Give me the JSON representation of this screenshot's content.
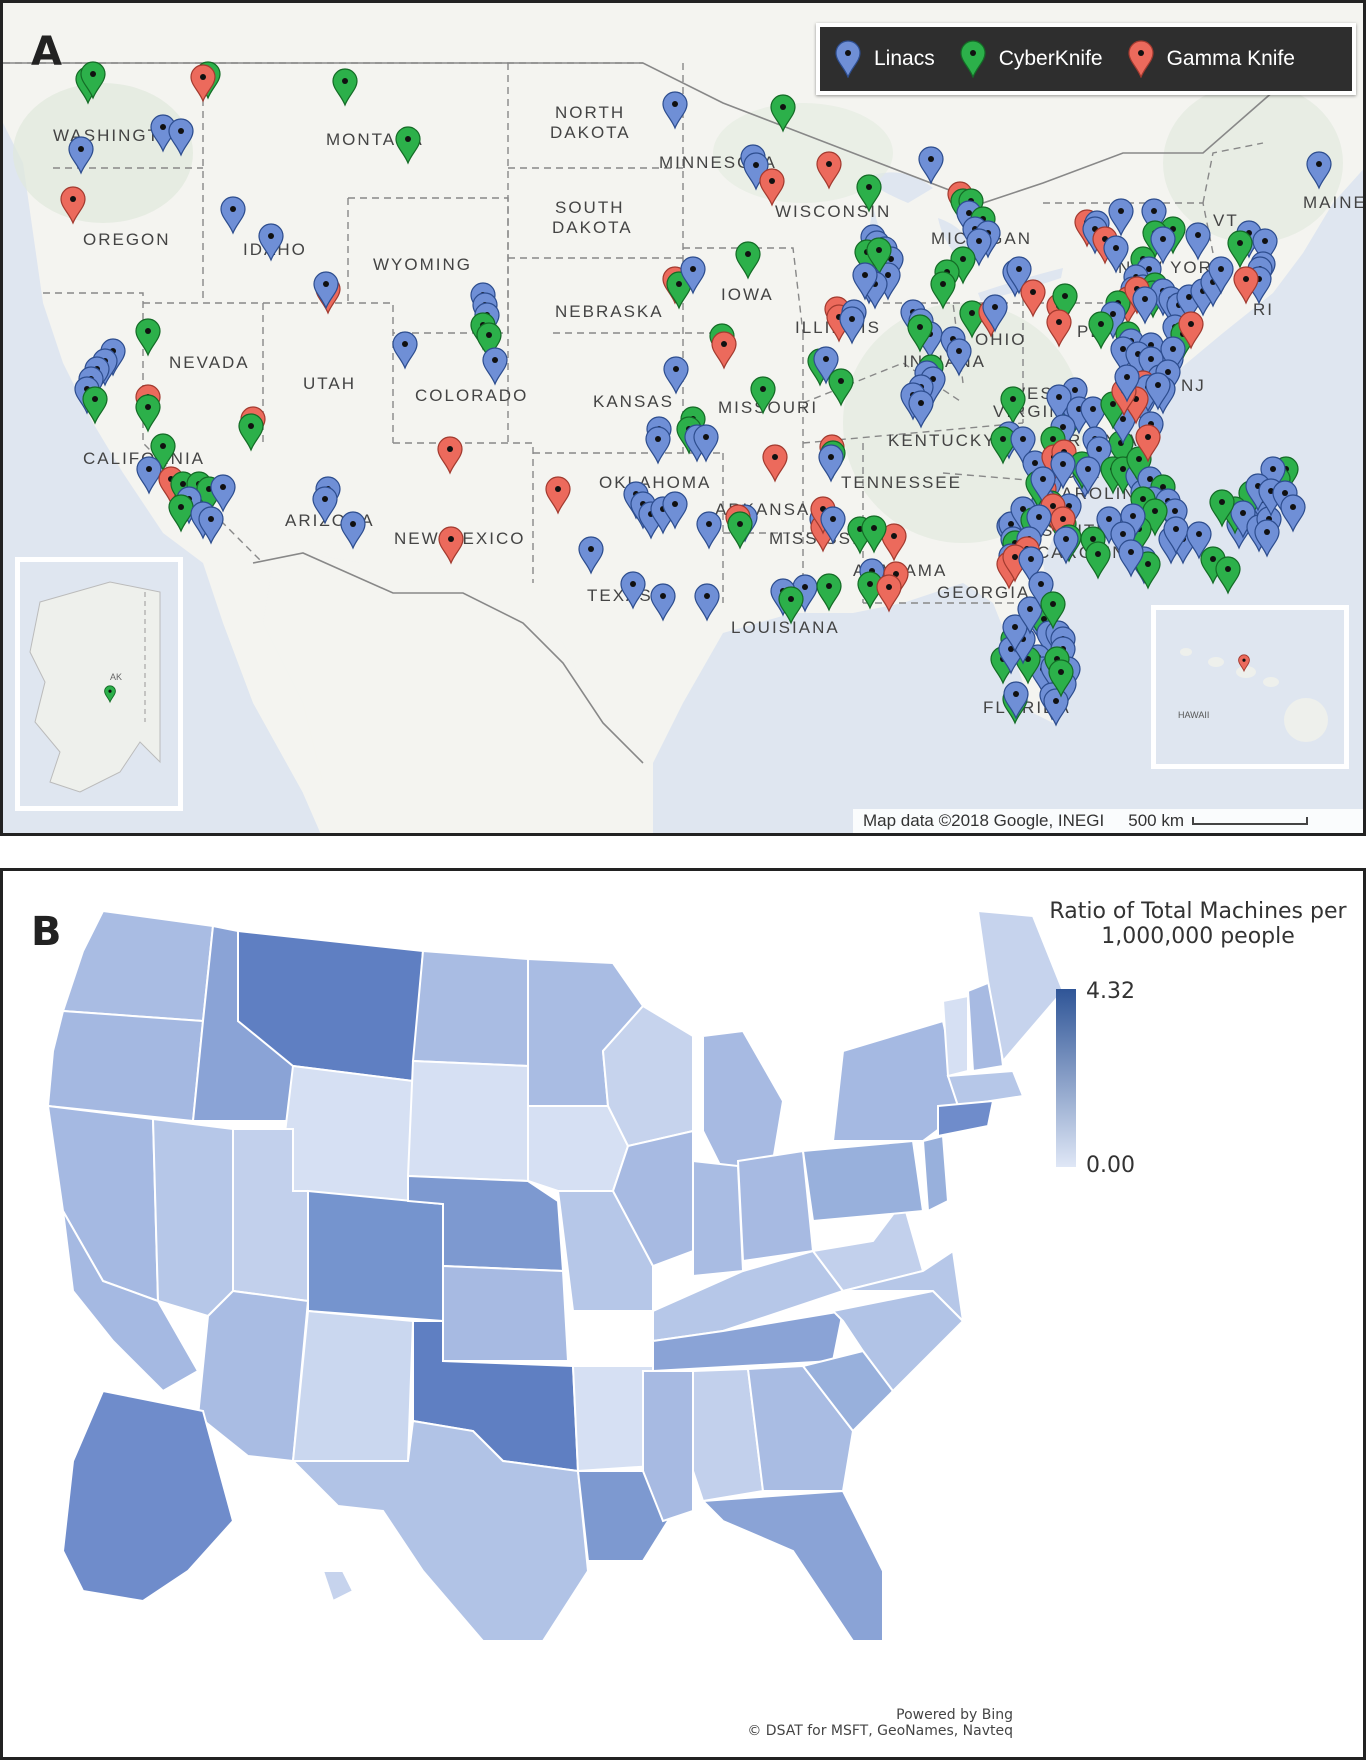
{
  "panel_a": {
    "letter": "A",
    "legend": [
      {
        "label": "Linacs",
        "color": "#6f8fd6"
      },
      {
        "label": "CyberKnife",
        "color": "#2cb04a"
      },
      {
        "label": "Gamma Knife",
        "color": "#ec6a5c"
      }
    ],
    "attribution": "Map data ©2018 Google, INEGI",
    "scale_label": "500 km",
    "inset_alaska_label": "AK",
    "inset_hawaii_label": "HAWAII",
    "state_labels": [
      {
        "text": "WASHINGTON"
      },
      {
        "text": "MONTANA"
      },
      {
        "text": "NORTH"
      },
      {
        "text": "DAKOTA"
      },
      {
        "text": "MINNESOTA"
      },
      {
        "text": "MAINE"
      },
      {
        "text": "OREGON"
      },
      {
        "text": "IDAHO"
      },
      {
        "text": "SOUTH"
      },
      {
        "text": "DAKOTA"
      },
      {
        "text": "WISCONSIN"
      },
      {
        "text": "VT"
      },
      {
        "text": "WYOMING"
      },
      {
        "text": "MICHIGAN"
      },
      {
        "text": "NEW YORK"
      },
      {
        "text": "NEBRASKA"
      },
      {
        "text": "IOWA"
      },
      {
        "text": "ILLINOIS"
      },
      {
        "text": "NEVADA"
      },
      {
        "text": "UTAH"
      },
      {
        "text": "COLORADO"
      },
      {
        "text": "KANSAS"
      },
      {
        "text": "MISSOURI"
      },
      {
        "text": "INDIANA"
      },
      {
        "text": "OHIO"
      },
      {
        "text": "PENN"
      },
      {
        "text": "NJ"
      },
      {
        "text": "DE"
      },
      {
        "text": "WEST"
      },
      {
        "text": "VIRGINIA"
      },
      {
        "text": "CALIFORNIA"
      },
      {
        "text": "KENTUCKY"
      },
      {
        "text": "VIRGINIA"
      },
      {
        "text": "OKLAHOMA"
      },
      {
        "text": "TENNESSEE"
      },
      {
        "text": "NORTH"
      },
      {
        "text": "CAROLINA"
      },
      {
        "text": "ARKANSAS"
      },
      {
        "text": "ARIZONA"
      },
      {
        "text": "NEW MEXICO"
      },
      {
        "text": "MISSISSIPPI"
      },
      {
        "text": "SOUTH"
      },
      {
        "text": "CAROLINA"
      },
      {
        "text": "ALABAMA"
      },
      {
        "text": "TEXAS"
      },
      {
        "text": "GEORGIA"
      },
      {
        "text": "LOUISIANA"
      },
      {
        "text": "FLORIDA"
      },
      {
        "text": "RI"
      }
    ]
  },
  "panel_b": {
    "letter": "B",
    "legend_title_line1": "Ratio of Total Machines per",
    "legend_title_line2": "1,000,000 people",
    "legend_max": "4.32",
    "legend_min": "0.00",
    "color_low": "#dfe7f6",
    "color_high": "#2f5597",
    "credit_line1": "Powered by Bing",
    "credit_line2": "© DSAT for MSFT, GeoNames, Navteq"
  }
}
